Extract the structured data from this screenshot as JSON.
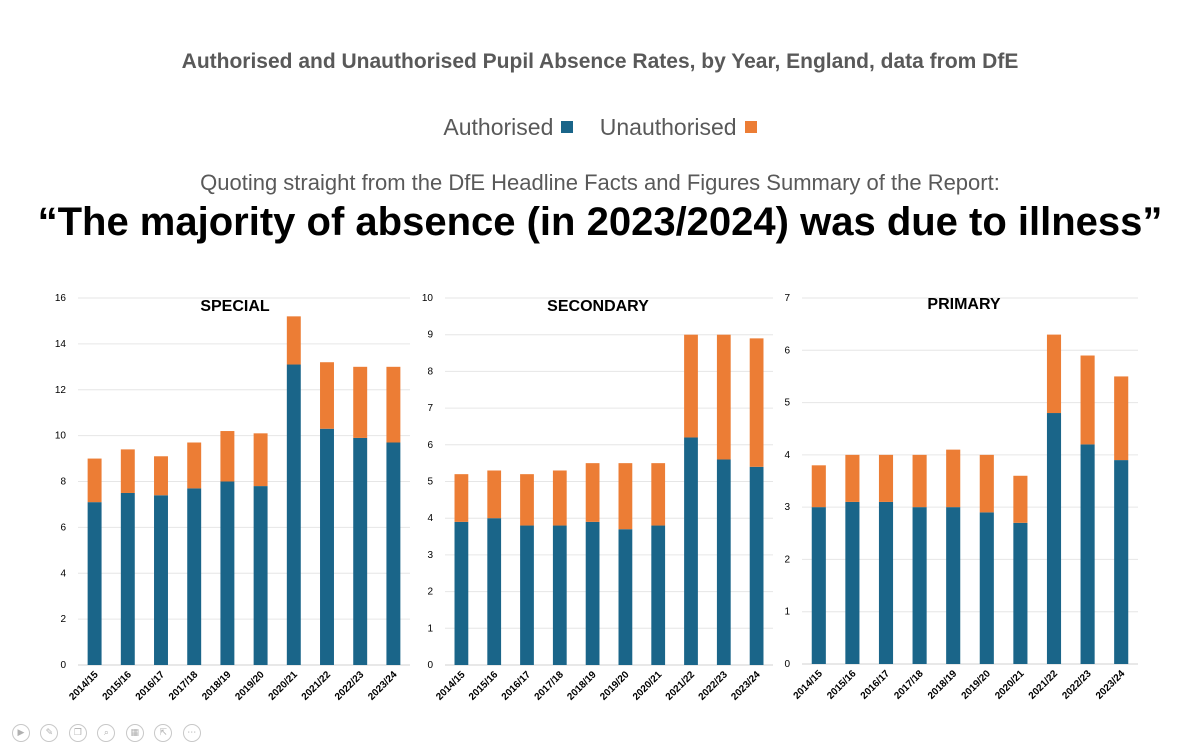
{
  "header": {
    "title": "Authorised and Unauthorised Pupil Absence Rates, by Year, England, data from DfE",
    "quote_intro": "Quoting straight from the DfE Headline Facts and Figures Summary of the Report:",
    "quote": "“The majority of absence (in 2023/2024) was due to illness”"
  },
  "legend": {
    "authorised_label": "Authorised",
    "unauthorised_label": "Unauthorised"
  },
  "colors": {
    "authorised": "#1a6589",
    "unauthorised": "#ec7d35"
  },
  "chart_data": [
    {
      "type": "bar",
      "stacked": true,
      "title": "SPECIAL",
      "categories": [
        "2014/15",
        "2015/16",
        "2016/17",
        "2017/18",
        "2018/19",
        "2019/20",
        "2020/21",
        "2021/22",
        "2022/23",
        "2023/24"
      ],
      "series": [
        {
          "name": "Authorised",
          "values": [
            7.1,
            7.5,
            7.4,
            7.7,
            8.0,
            7.8,
            13.1,
            10.3,
            9.9,
            9.7
          ]
        },
        {
          "name": "Unauthorised",
          "values": [
            1.9,
            1.9,
            1.7,
            2.0,
            2.2,
            2.3,
            2.1,
            2.9,
            3.1,
            3.3
          ]
        }
      ],
      "ylim": [
        0,
        16
      ],
      "yticks": [
        0,
        2,
        4,
        6,
        8,
        10,
        12,
        14,
        16
      ]
    },
    {
      "type": "bar",
      "stacked": true,
      "title": "SECONDARY",
      "categories": [
        "2014/15",
        "2015/16",
        "2016/17",
        "2017/18",
        "2018/19",
        "2019/20",
        "2020/21",
        "2021/22",
        "2022/23",
        "2023/24"
      ],
      "series": [
        {
          "name": "Authorised",
          "values": [
            3.9,
            4.0,
            3.8,
            3.8,
            3.9,
            3.7,
            3.8,
            6.2,
            5.6,
            5.4
          ]
        },
        {
          "name": "Unauthorised",
          "values": [
            1.3,
            1.3,
            1.4,
            1.5,
            1.6,
            1.8,
            1.7,
            2.8,
            3.4,
            3.5
          ]
        }
      ],
      "ylim": [
        0,
        10
      ],
      "yticks": [
        0,
        1,
        2,
        3,
        4,
        5,
        6,
        7,
        8,
        9,
        10
      ]
    },
    {
      "type": "bar",
      "stacked": true,
      "title": "PRIMARY",
      "categories": [
        "2014/15",
        "2015/16",
        "2016/17",
        "2017/18",
        "2018/19",
        "2019/20",
        "2020/21",
        "2021/22",
        "2022/23",
        "2023/24"
      ],
      "series": [
        {
          "name": "Authorised",
          "values": [
            3.0,
            3.1,
            3.1,
            3.0,
            3.0,
            2.9,
            2.7,
            4.8,
            4.2,
            3.9
          ]
        },
        {
          "name": "Unauthorised",
          "values": [
            0.8,
            0.9,
            0.9,
            1.0,
            1.1,
            1.1,
            0.9,
            1.5,
            1.7,
            1.6
          ]
        }
      ],
      "ylim": [
        0,
        7
      ],
      "yticks": [
        0,
        1,
        2,
        3,
        4,
        5,
        6,
        7
      ]
    }
  ],
  "toolbar": {
    "icons": [
      "play-icon",
      "pen-icon",
      "copy-icon",
      "zoom-icon",
      "grid-icon",
      "share-icon",
      "more-icon"
    ]
  }
}
